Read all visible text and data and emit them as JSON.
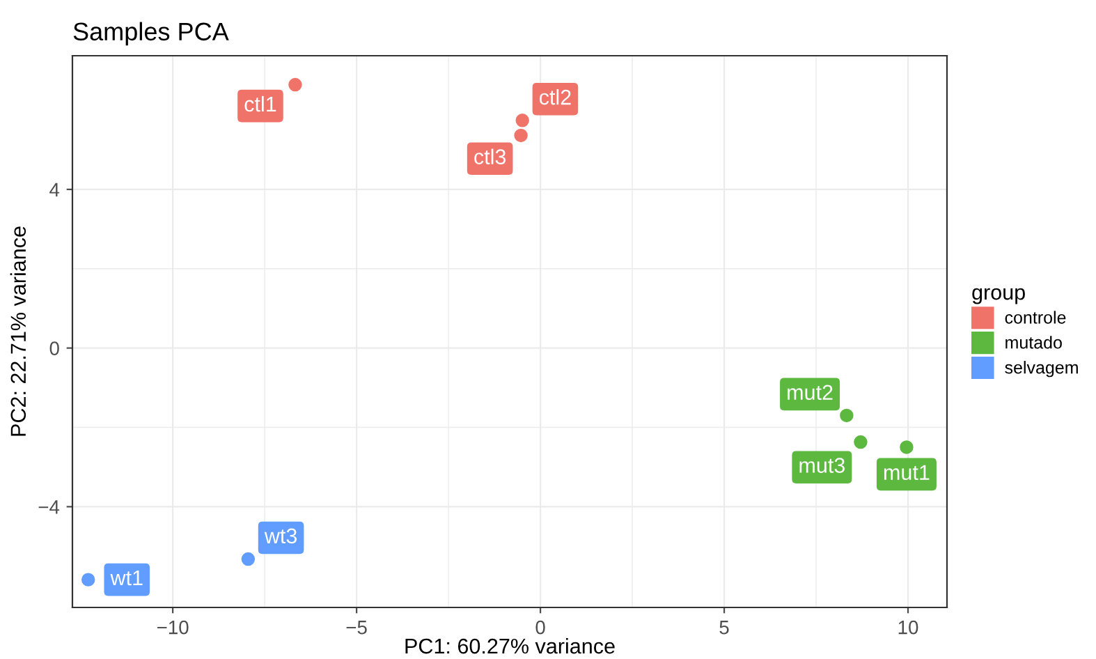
{
  "chart_data": {
    "type": "scatter",
    "title": "Samples PCA",
    "xlabel": "PC1: 60.27% variance",
    "ylabel": "PC2: 22.71% variance",
    "legend_title": "group",
    "series": [
      {
        "name": "controle",
        "color": "#f0736a",
        "x": [
          -6.67,
          -0.49,
          -0.53
        ],
        "values": [
          6.64,
          5.74,
          5.36
        ]
      },
      {
        "name": "mutado",
        "color": "#5cb83f",
        "x": [
          8.33,
          8.71,
          9.96
        ],
        "values": [
          -1.7,
          -2.37,
          -2.5
        ]
      },
      {
        "name": "selvagem",
        "color": "#619cff",
        "x": [
          -7.95,
          -12.3
        ],
        "values": [
          -5.32,
          -5.84
        ]
      }
    ],
    "annotations": [
      {
        "text": "ctl1",
        "x": -6.67,
        "y": 6.64
      },
      {
        "text": "ctl2",
        "x": -0.49,
        "y": 5.74
      },
      {
        "text": "ctl3",
        "x": -0.53,
        "y": 5.36
      },
      {
        "text": "mut2",
        "x": 8.33,
        "y": -1.7
      },
      {
        "text": "mut3",
        "x": 8.71,
        "y": -2.37
      },
      {
        "text": "mut1",
        "x": 9.96,
        "y": -2.5
      },
      {
        "text": "wt3",
        "x": -7.95,
        "y": -5.32
      },
      {
        "text": "wt1",
        "x": -12.3,
        "y": -5.84
      }
    ],
    "xlim": [
      -12.73,
      11.06
    ],
    "ylim": [
      -6.54,
      7.37
    ],
    "xticks": [
      {
        "value": -10,
        "label": "−10"
      },
      {
        "value": -5,
        "label": "−5"
      },
      0,
      5,
      10
    ],
    "yticks": [
      {
        "value": -4,
        "label": "−4"
      },
      0,
      4
    ],
    "grid": true,
    "legend": "right",
    "marker": "circle"
  }
}
